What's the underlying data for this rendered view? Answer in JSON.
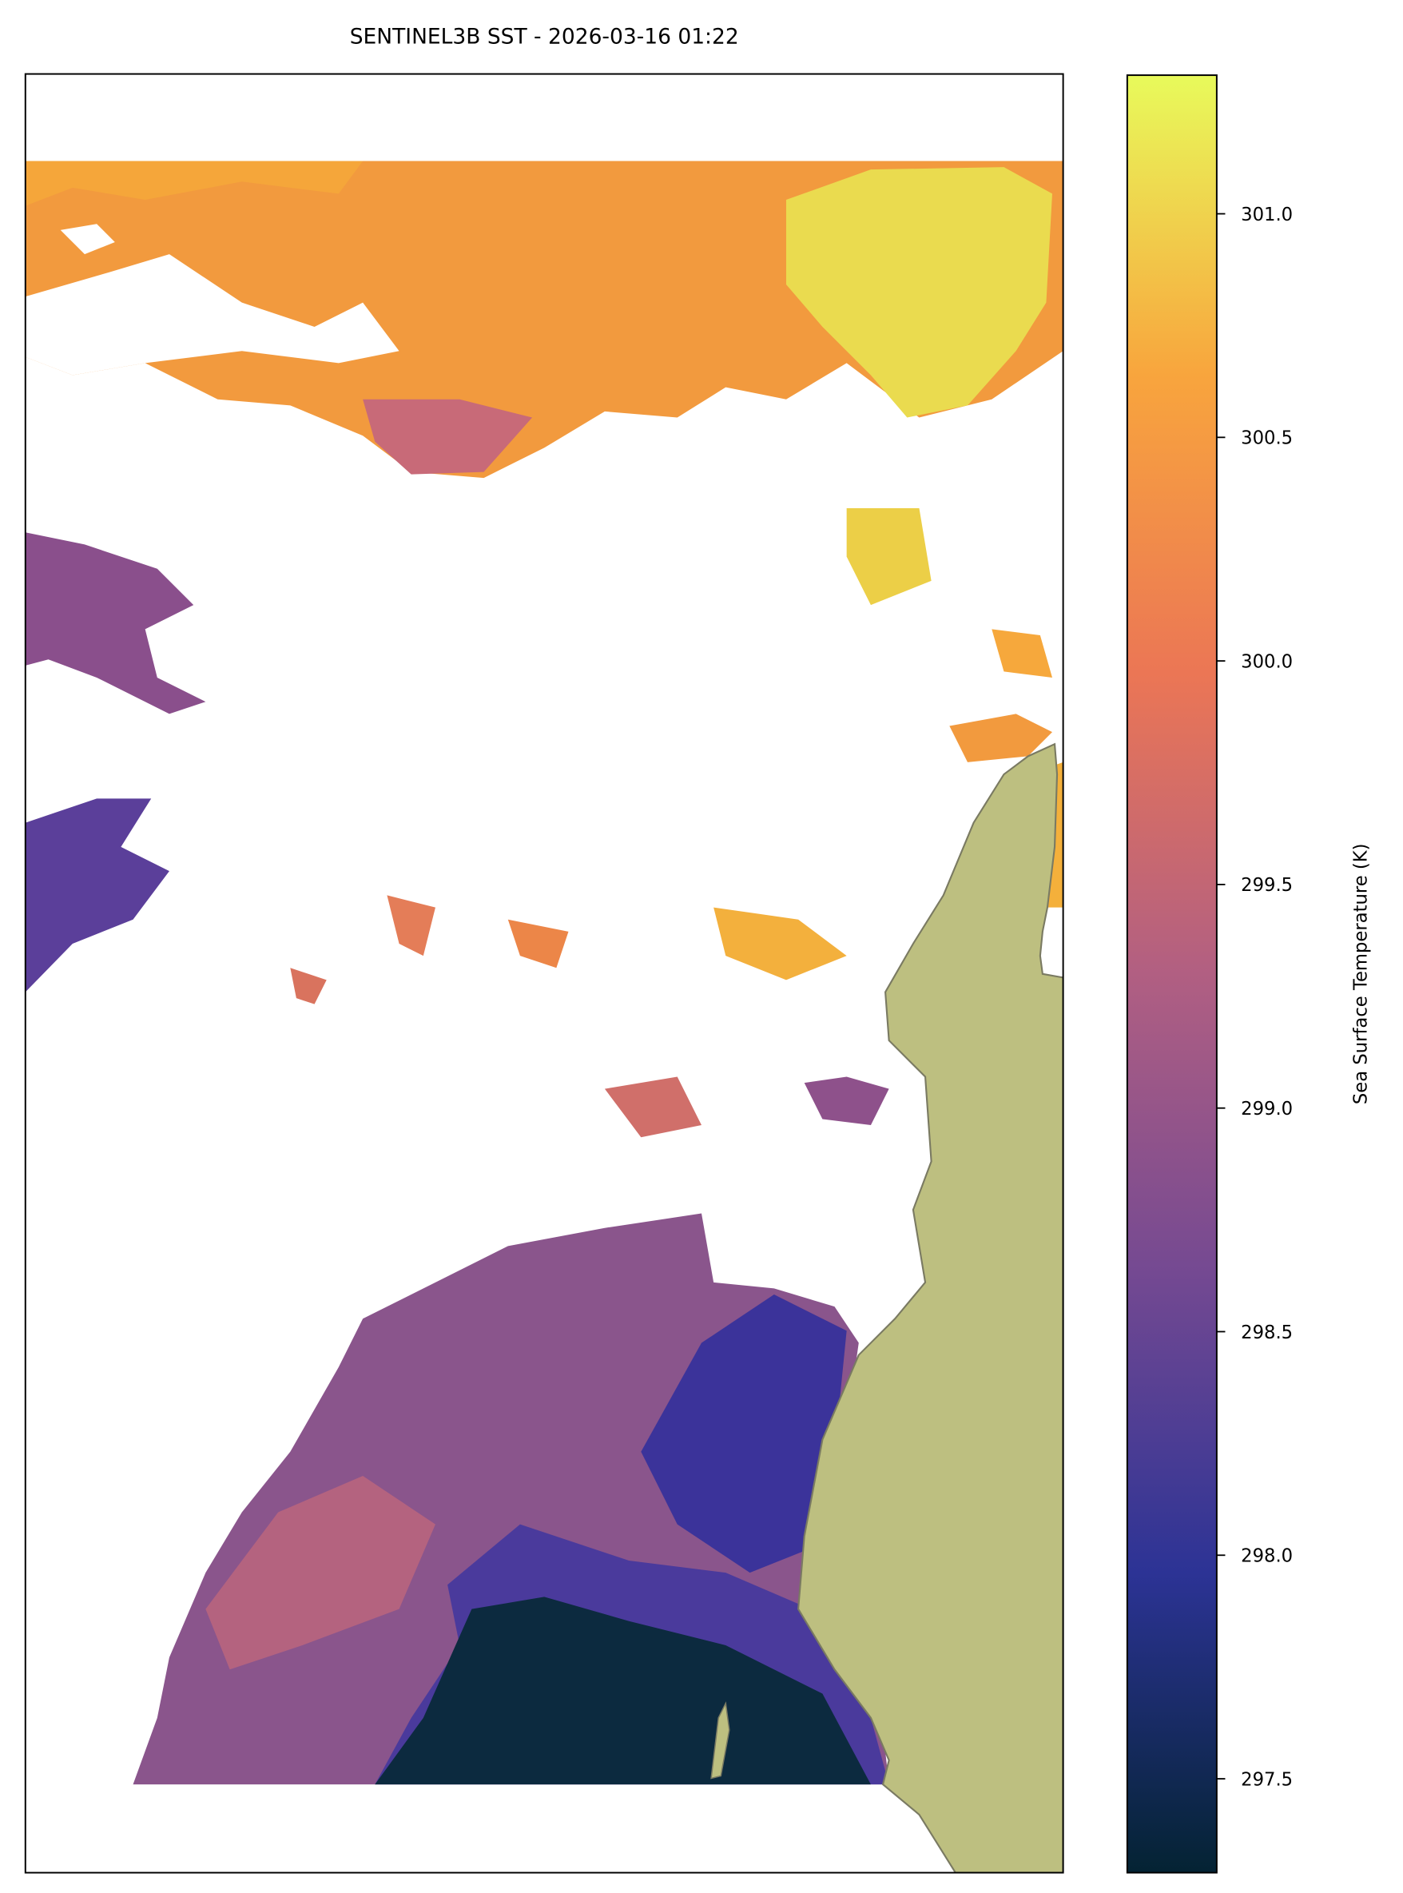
{
  "title": "SENTINEL3B SST - 2026-03-16 01:22",
  "colorbar": {
    "label": "Sea Surface Temperature (K)",
    "lim": [
      297.29,
      301.31
    ],
    "ticks": [
      297.5,
      {
        "value": 298,
        "label": "298.0"
      },
      298.5,
      {
        "value": 299,
        "label": "299.0"
      },
      299.5,
      {
        "value": 300,
        "label": "300.0"
      },
      300.5,
      {
        "value": 301,
        "label": "301.0"
      }
    ],
    "colormap": [
      "#042333",
      "#2c3395",
      "#744992",
      "#b15f82",
      "#eb7655",
      "#f8a53d",
      "#e8fa5b"
    ]
  }
}
